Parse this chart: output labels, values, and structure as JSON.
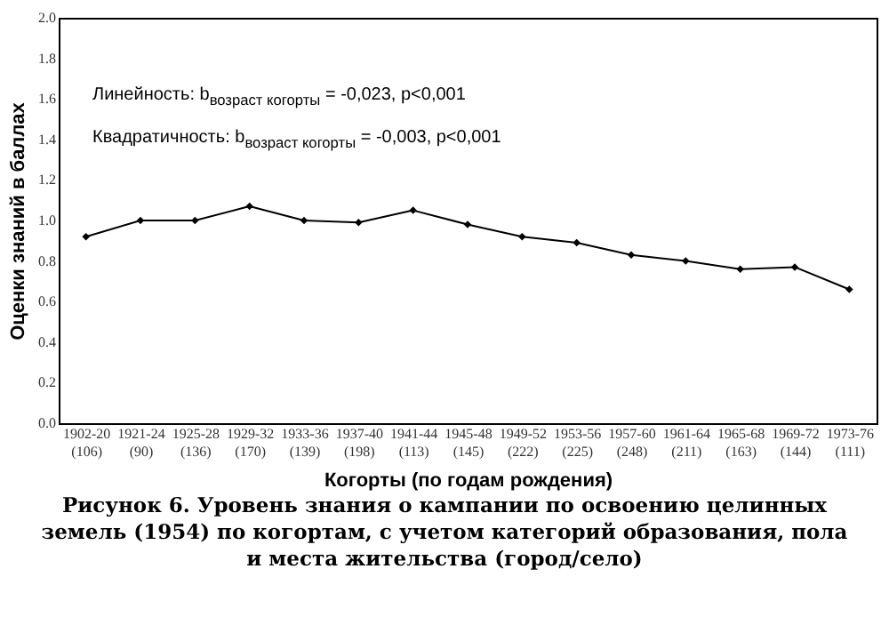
{
  "chart_data": {
    "type": "line",
    "title": "Рисунок 6. Уровень знания о кампании по освоению целинных земель (1954) по когортам, с учетом категорий образования, пола и места жительства (город/село)",
    "xlabel": "Когорты (по годам рождения)",
    "ylabel": "Оценки знаний в баллах",
    "annotations": [
      "Линейность: b$_{возраст когорты}$ = -0,023, p<0,001",
      "Квадратичность: b$_{возраст когорты}$ = -0,003, p<0,001"
    ],
    "categories": [
      "1902-20\n(106)",
      "1921-24\n(90)",
      "1925-28\n(136)",
      "1929-32\n(170)",
      "1933-36\n(139)",
      "1937-40\n(198)",
      "1941-44\n(113)",
      "1945-48\n(145)",
      "1949-52\n(222)",
      "1953-56\n(225)",
      "1957-60\n(248)",
      "1961-64\n(211)",
      "1965-68\n(163)",
      "1969-72\n(144)",
      "1973-76\n(111)"
    ],
    "series": [
      {
        "color": "#000000",
        "values": [
          0.92,
          1.0,
          1.0,
          1.07,
          1.0,
          0.99,
          1.05,
          0.98,
          0.92,
          0.89,
          0.83,
          0.8,
          0.76,
          0.77,
          0.66
        ]
      }
    ],
    "ylim": [
      0,
      2
    ],
    "yticks": [
      {
        "value": 0,
        "label": "0.0"
      },
      {
        "value": 0.2,
        "label": "0.2"
      },
      {
        "value": 0.4,
        "label": "0.4"
      },
      {
        "value": 0.6,
        "label": "0.6"
      },
      {
        "value": 0.8,
        "label": "0.8"
      },
      {
        "value": 1,
        "label": "1.0"
      },
      {
        "value": 1.2,
        "label": "1.2"
      },
      {
        "value": 1.4,
        "label": "1.4"
      },
      {
        "value": 1.6,
        "label": "1.6"
      },
      {
        "value": 1.8,
        "label": "1.8"
      },
      {
        "value": 2,
        "label": "2.0"
      }
    ],
    "grid": false,
    "marker": "diamond",
    "line_style": "solid"
  }
}
